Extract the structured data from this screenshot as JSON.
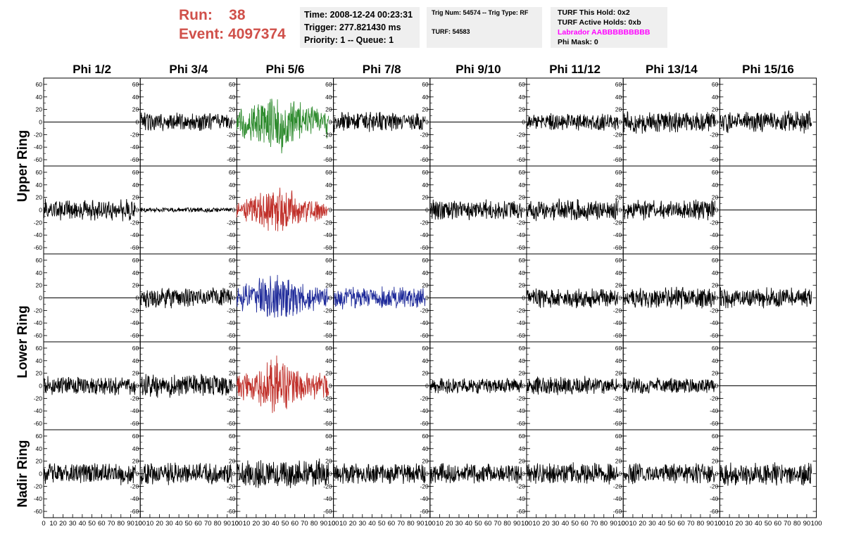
{
  "header": {
    "run_label": "Run:",
    "run_value": "38",
    "event_label": "Event:",
    "event_value": "4097374",
    "time": "Time: 2008-12-24 00:23:31",
    "trigger": "Trigger: 277.821430 ms",
    "priority": "Priority: 1 -- Queue: 1",
    "trig_num": "Trig Num: 54574 -- Trig Type: RF",
    "turf": "TURF: 54583",
    "turf_this_hold": "TURF This Hold: 0x2",
    "turf_active_holds": "TURF Active Holds: 0xb",
    "labrador": "Labrador AABBBBBBBBB",
    "phi_mask": "Phi Mask: 0"
  },
  "colors": {
    "run_text": "#d0504a",
    "labrador_text": "#ff00ff",
    "green": "#2e8b2e",
    "red": "#c0302a",
    "blue": "#1f2b9a",
    "black": "#000000"
  },
  "chart_data": {
    "type": "line",
    "layout": "grid of 5 rows x 8 columns of waveform panels",
    "columns": [
      "Phi 1/2",
      "Phi 3/4",
      "Phi 5/6",
      "Phi 7/8",
      "Phi 9/10",
      "Phi 11/12",
      "Phi 13/14",
      "Phi 15/16"
    ],
    "rows": [
      "Upper Ring",
      "Upper Ring",
      "Lower Ring",
      "Lower Ring",
      "Nadir Ring"
    ],
    "row_labels": [
      {
        "text": "Upper Ring",
        "spans_rows": [
          0,
          1
        ]
      },
      {
        "text": "Lower Ring",
        "spans_rows": [
          2,
          3
        ]
      },
      {
        "text": "Nadir Ring",
        "spans_rows": [
          4,
          4
        ]
      }
    ],
    "xlim": [
      0,
      100
    ],
    "ylim": [
      -70,
      70
    ],
    "y_ticks": [
      -60,
      -40,
      -20,
      0,
      20,
      40,
      60
    ],
    "x_ticks": [
      0,
      10,
      20,
      30,
      40,
      50,
      60,
      70,
      80,
      90,
      100
    ],
    "x_tick_labels": [
      "0",
      "10",
      "20",
      "30",
      "40",
      "50",
      "60",
      "70",
      "80",
      "90",
      "100"
    ],
    "waveform_x_range": [
      0,
      95
    ],
    "grid": false,
    "panels": [
      [
        {
          "color": "black",
          "amplitude": 0
        },
        {
          "color": "black",
          "amplitude": 12
        },
        {
          "color": "green",
          "amplitude": 30
        },
        {
          "color": "black",
          "amplitude": 13
        },
        {
          "color": "black",
          "amplitude": 0
        },
        {
          "color": "black",
          "amplitude": 11
        },
        {
          "color": "black",
          "amplitude": 14
        },
        {
          "color": "black",
          "amplitude": 14
        }
      ],
      [
        {
          "color": "black",
          "amplitude": 14
        },
        {
          "color": "black",
          "amplitude": 3
        },
        {
          "color": "red",
          "amplitude": 22
        },
        {
          "color": "black",
          "amplitude": 0
        },
        {
          "color": "black",
          "amplitude": 13
        },
        {
          "color": "black",
          "amplitude": 14
        },
        {
          "color": "black",
          "amplitude": 13
        },
        {
          "color": "black",
          "amplitude": 0
        }
      ],
      [
        {
          "color": "black",
          "amplitude": 0
        },
        {
          "color": "black",
          "amplitude": 13
        },
        {
          "color": "blue",
          "amplitude": 24
        },
        {
          "color": "blue",
          "amplitude": 14
        },
        {
          "color": "black",
          "amplitude": 0
        },
        {
          "color": "black",
          "amplitude": 13
        },
        {
          "color": "black",
          "amplitude": 14
        },
        {
          "color": "black",
          "amplitude": 13
        }
      ],
      [
        {
          "color": "black",
          "amplitude": 12
        },
        {
          "color": "black",
          "amplitude": 15
        },
        {
          "color": "red",
          "amplitude": 27
        },
        {
          "color": "black",
          "amplitude": 0
        },
        {
          "color": "black",
          "amplitude": 10
        },
        {
          "color": "black",
          "amplitude": 12
        },
        {
          "color": "black",
          "amplitude": 11
        },
        {
          "color": "black",
          "amplitude": 0
        }
      ],
      [
        {
          "color": "black",
          "amplitude": 14
        },
        {
          "color": "black",
          "amplitude": 14
        },
        {
          "color": "black",
          "amplitude": 18
        },
        {
          "color": "black",
          "amplitude": 14
        },
        {
          "color": "black",
          "amplitude": 13
        },
        {
          "color": "black",
          "amplitude": 14
        },
        {
          "color": "black",
          "amplitude": 13
        },
        {
          "color": "black",
          "amplitude": 15
        }
      ]
    ]
  }
}
